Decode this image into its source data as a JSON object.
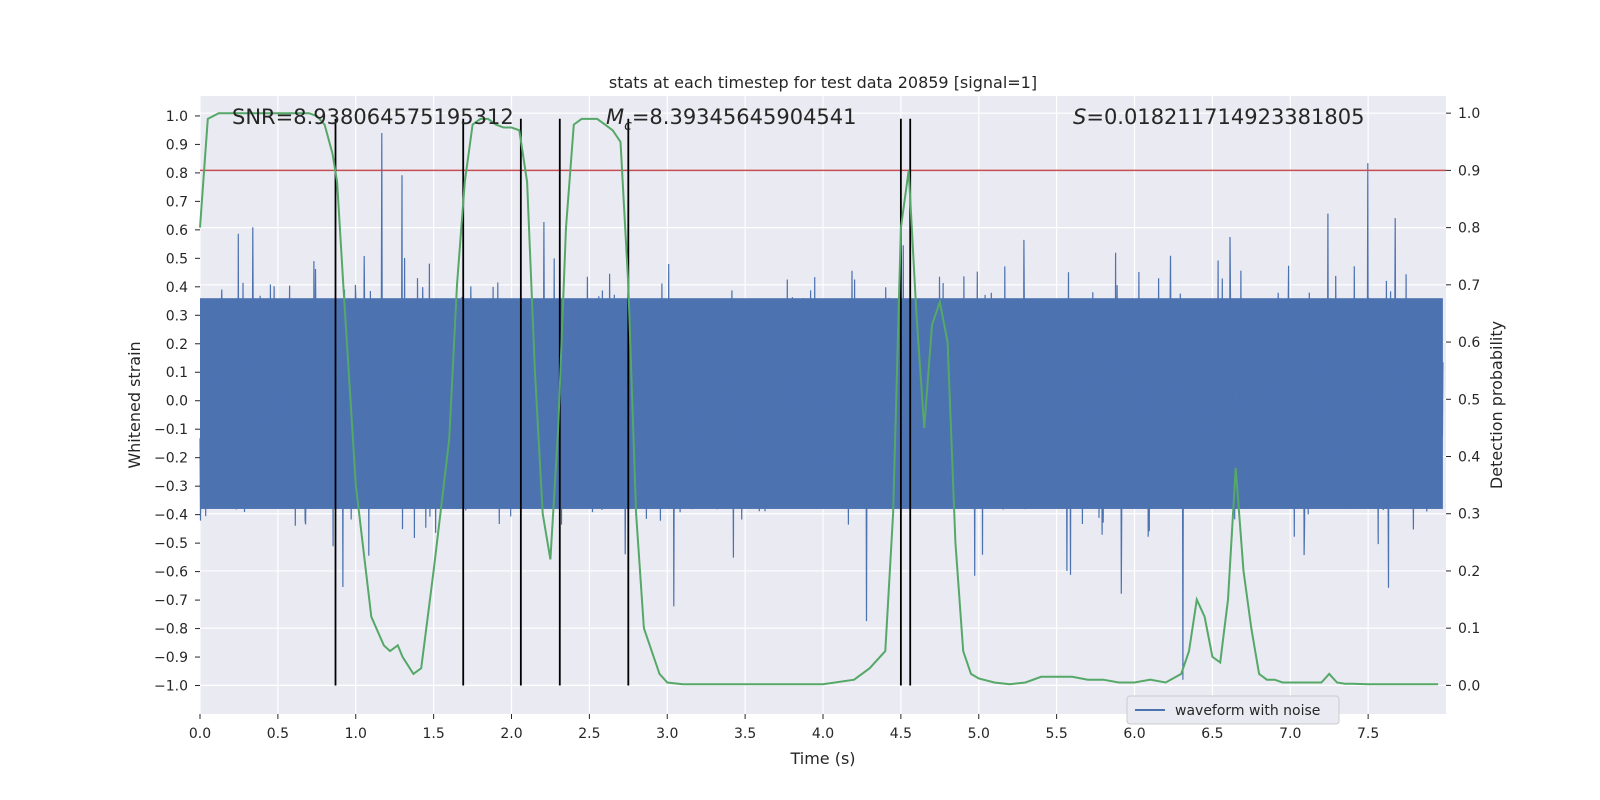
{
  "chart_data": {
    "type": "line",
    "title": "stats at each timestep for test data 20859 [signal=1]",
    "xlabel": "Time (s)",
    "ylabel_left": "Whitened strain",
    "ylabel_right": "Detection probability",
    "xlim": [
      0.0,
      8.0
    ],
    "ylim_left": [
      -1.1,
      1.07
    ],
    "ylim_right": [
      -0.05,
      1.03
    ],
    "x_ticks": [
      0.0,
      0.5,
      1.0,
      1.5,
      2.0,
      2.5,
      3.0,
      3.5,
      4.0,
      4.5,
      5.0,
      5.5,
      6.0,
      6.5,
      7.0,
      7.5
    ],
    "x_tick_labels": [
      "0.0",
      "0.5",
      "1.0",
      "1.5",
      "2.0",
      "2.5",
      "3.0",
      "3.5",
      "4.0",
      "4.5",
      "5.0",
      "5.5",
      "6.0",
      "6.5",
      "7.0",
      "7.5"
    ],
    "y_left_ticks": [
      1.0,
      0.9,
      0.8,
      0.7,
      0.6,
      0.5,
      0.4,
      0.3,
      0.2,
      0.1,
      0.0,
      -0.1,
      -0.2,
      -0.3,
      -0.4,
      -0.5,
      -0.6,
      -0.7,
      -0.8,
      -0.9,
      -1.0
    ],
    "y_left_tick_labels": [
      "1.0",
      "0.9",
      "0.8",
      "0.7",
      "0.6",
      "0.5",
      "0.4",
      "0.3",
      "0.2",
      "0.1",
      "0.0",
      "−0.1",
      "−0.2",
      "−0.3",
      "−0.4",
      "−0.5",
      "−0.6",
      "−0.7",
      "−0.8",
      "−0.9",
      "−1.0"
    ],
    "y_right_ticks": [
      1.0,
      0.9,
      0.8,
      0.7,
      0.6,
      0.5,
      0.4,
      0.3,
      0.2,
      0.1,
      0.0
    ],
    "y_right_tick_labels": [
      "1.0",
      "0.9",
      "0.8",
      "0.7",
      "0.6",
      "0.5",
      "0.4",
      "0.3",
      "0.2",
      "0.1",
      "0.0"
    ],
    "annotations": {
      "snr": "SNR=8.938064575195312",
      "mc_symbol": "M",
      "mc_sub": "c",
      "mc_value": "=8.39345645904541",
      "s_symbol": "S",
      "s_value": "=0.018211714923381805"
    },
    "threshold": {
      "axis": "right",
      "value": 0.9,
      "color": "#c44e52"
    },
    "vertical_lines": [
      0.87,
      1.69,
      2.06,
      2.31,
      2.75,
      4.5,
      4.56
    ],
    "series": [
      {
        "name": "waveform with noise",
        "axis": "left",
        "color": "#4c72b0",
        "style": "dense noise, |strain| mostly within 0.4, peaks up to about ±0.9"
      },
      {
        "name": "detection probability",
        "axis": "right",
        "color": "#55a868",
        "x": [
          0.0,
          0.05,
          0.12,
          0.3,
          0.5,
          0.7,
          0.75,
          0.8,
          0.85,
          0.88,
          0.92,
          1.0,
          1.1,
          1.18,
          1.22,
          1.27,
          1.3,
          1.37,
          1.42,
          1.5,
          1.6,
          1.65,
          1.7,
          1.75,
          1.8,
          1.85,
          1.9,
          1.95,
          2.0,
          2.05,
          2.1,
          2.15,
          2.2,
          2.25,
          2.3,
          2.35,
          2.4,
          2.45,
          2.5,
          2.55,
          2.6,
          2.65,
          2.7,
          2.75,
          2.8,
          2.85,
          2.95,
          3.0,
          3.1,
          3.2,
          3.4,
          3.6,
          3.8,
          4.0,
          4.2,
          4.3,
          4.4,
          4.45,
          4.5,
          4.55,
          4.6,
          4.65,
          4.7,
          4.75,
          4.8,
          4.85,
          4.9,
          4.95,
          5.0,
          5.1,
          5.2,
          5.3,
          5.4,
          5.5,
          5.6,
          5.7,
          5.8,
          5.9,
          6.0,
          6.1,
          6.2,
          6.3,
          6.35,
          6.4,
          6.45,
          6.5,
          6.55,
          6.6,
          6.65,
          6.7,
          6.75,
          6.8,
          6.85,
          6.9,
          6.95,
          7.0,
          7.1,
          7.2,
          7.25,
          7.3,
          7.35,
          7.4,
          7.5,
          7.6,
          7.7,
          7.8,
          7.9,
          7.95
        ],
        "values": [
          0.8,
          0.99,
          1.0,
          1.0,
          1.0,
          1.0,
          0.995,
          0.98,
          0.93,
          0.88,
          0.7,
          0.35,
          0.12,
          0.07,
          0.06,
          0.07,
          0.05,
          0.02,
          0.03,
          0.2,
          0.43,
          0.7,
          0.88,
          0.98,
          0.99,
          0.99,
          0.98,
          0.975,
          0.975,
          0.97,
          0.88,
          0.55,
          0.3,
          0.22,
          0.45,
          0.8,
          0.98,
          0.99,
          0.99,
          0.99,
          0.98,
          0.97,
          0.95,
          0.7,
          0.3,
          0.1,
          0.02,
          0.005,
          0.002,
          0.002,
          0.002,
          0.002,
          0.002,
          0.002,
          0.01,
          0.03,
          0.06,
          0.3,
          0.8,
          0.9,
          0.65,
          0.45,
          0.63,
          0.67,
          0.6,
          0.25,
          0.06,
          0.02,
          0.012,
          0.005,
          0.002,
          0.005,
          0.015,
          0.015,
          0.015,
          0.01,
          0.01,
          0.005,
          0.005,
          0.01,
          0.005,
          0.02,
          0.06,
          0.15,
          0.12,
          0.05,
          0.04,
          0.15,
          0.38,
          0.2,
          0.1,
          0.02,
          0.01,
          0.01,
          0.005,
          0.005,
          0.005,
          0.005,
          0.02,
          0.005,
          0.003,
          0.003,
          0.002,
          0.002,
          0.002,
          0.002,
          0.002,
          0.002
        ]
      }
    ],
    "legend": {
      "location": "lower right",
      "entries": [
        "waveform with noise"
      ]
    }
  }
}
